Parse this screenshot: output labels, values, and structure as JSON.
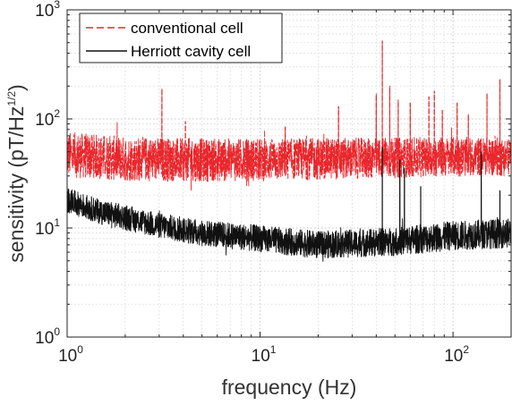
{
  "chart_data": {
    "type": "line",
    "x_scale": "log",
    "y_scale": "log",
    "xlim": [
      1,
      200
    ],
    "ylim": [
      1,
      1000
    ],
    "grid": true,
    "legend_position": "top-left",
    "xlabel": "frequency    (Hz)",
    "ylabel_main": "sensitivity (pT/Hz",
    "ylabel_exp": "1/2",
    "ylabel_end": ")",
    "x_ticks": [
      {
        "value": 1,
        "base": "10",
        "exp": "0"
      },
      {
        "value": 10,
        "base": "10",
        "exp": "1"
      },
      {
        "value": 100,
        "base": "10",
        "exp": "2"
      }
    ],
    "y_ticks": [
      {
        "value": 1,
        "base": "10",
        "exp": "0"
      },
      {
        "value": 10,
        "base": "10",
        "exp": "1"
      },
      {
        "value": 100,
        "base": "10",
        "exp": "2"
      },
      {
        "value": 1000,
        "base": "10",
        "exp": "3"
      }
    ],
    "series": [
      {
        "name": "conventional cell",
        "color": "#e8262b",
        "dash": "dashed",
        "baseline": [
          [
            1,
            47
          ],
          [
            2,
            43
          ],
          [
            5,
            42
          ],
          [
            10,
            42
          ],
          [
            20,
            43
          ],
          [
            50,
            44
          ],
          [
            100,
            45
          ],
          [
            200,
            45
          ]
        ],
        "noise_span_decades": [
          0.26,
          0.22
        ],
        "spikes": [
          [
            3.1,
            190
          ],
          [
            4.1,
            95
          ],
          [
            13.5,
            85
          ],
          [
            25.5,
            130
          ],
          [
            40.0,
            170
          ],
          [
            43.0,
            520
          ],
          [
            47.0,
            200
          ],
          [
            52.0,
            150
          ],
          [
            60.0,
            140
          ],
          [
            75.0,
            160
          ],
          [
            80.0,
            180
          ],
          [
            88.0,
            120
          ],
          [
            105.0,
            140
          ],
          [
            120.0,
            110
          ],
          [
            150.0,
            170
          ],
          [
            175.0,
            230
          ]
        ]
      },
      {
        "name": "Herriott cavity cell",
        "color": "#111111",
        "dash": "solid",
        "baseline": [
          [
            1,
            18
          ],
          [
            1.5,
            14
          ],
          [
            2,
            12.5
          ],
          [
            3,
            10.5
          ],
          [
            5,
            9
          ],
          [
            10,
            8
          ],
          [
            20,
            7
          ],
          [
            50,
            7.5
          ],
          [
            100,
            8.5
          ],
          [
            200,
            9
          ]
        ],
        "noise_span_decades": [
          0.14,
          0.17
        ],
        "spikes": [
          [
            43.0,
            55
          ],
          [
            53.0,
            42
          ],
          [
            56.0,
            35
          ],
          [
            68.0,
            24
          ],
          [
            140.0,
            50
          ],
          [
            175.0,
            22
          ]
        ]
      }
    ]
  }
}
